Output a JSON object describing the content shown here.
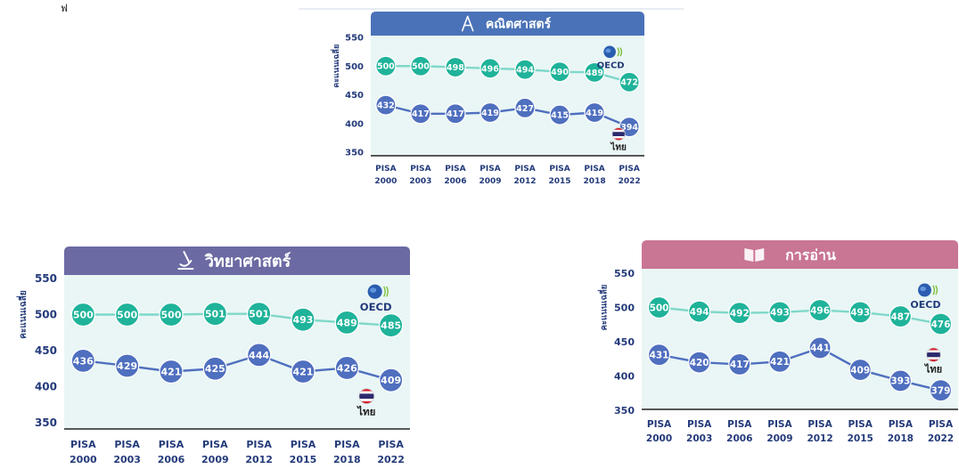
{
  "corner_mark": "ฟ",
  "colors": {
    "oecd": "#1fb39a",
    "oecd_line": "#7fd8c9",
    "thai": "#4f6fbf",
    "thai_line": "#4f6fbf",
    "plot_bg": "#e9f6f5",
    "axis_text": "#233a7a"
  },
  "labels": {
    "ylabel": "คะแนนเฉลี่ย",
    "oecd": "OECD",
    "thai": "ไทย"
  },
  "chart_data": [
    {
      "type": "line",
      "title": "คณิตศาสตร์",
      "header_color": "#4a72b8",
      "header_icon": "compass-icon",
      "categories": [
        "PISA 2000",
        "PISA 2003",
        "PISA 2006",
        "PISA 2009",
        "PISA 2012",
        "PISA 2015",
        "PISA 2018",
        "PISA 2022"
      ],
      "ylim": [
        350,
        550
      ],
      "yticks": [
        350,
        400,
        450,
        500,
        550
      ],
      "ylabel": "คะแนนเฉลี่ย",
      "legend": "right",
      "series": [
        {
          "name": "OECD",
          "values": [
            500,
            500,
            498,
            496,
            494,
            490,
            489,
            472
          ]
        },
        {
          "name": "ไทย",
          "values": [
            432,
            417,
            417,
            419,
            427,
            415,
            419,
            394
          ]
        }
      ]
    },
    {
      "type": "line",
      "title": "วิทยาศาสตร์",
      "header_color": "#6b6aa3",
      "header_icon": "microscope-icon",
      "categories": [
        "PISA 2000",
        "PISA 2003",
        "PISA 2006",
        "PISA 2009",
        "PISA 2012",
        "PISA 2015",
        "PISA 2018",
        "PISA 2022"
      ],
      "ylim": [
        350,
        550
      ],
      "yticks": [
        350,
        400,
        450,
        500,
        550
      ],
      "ylabel": "คะแนนเฉลี่ย",
      "legend": "right",
      "series": [
        {
          "name": "OECD",
          "values": [
            500,
            500,
            500,
            501,
            501,
            493,
            489,
            485
          ]
        },
        {
          "name": "ไทย",
          "values": [
            436,
            429,
            421,
            425,
            444,
            421,
            426,
            409
          ]
        }
      ]
    },
    {
      "type": "line",
      "title": "การอ่าน",
      "header_color": "#c97594",
      "header_icon": "book-icon",
      "categories": [
        "PISA 2000",
        "PISA 2003",
        "PISA 2006",
        "PISA 2009",
        "PISA 2012",
        "PISA 2015",
        "PISA 2018",
        "PISA 2022"
      ],
      "ylim": [
        350,
        550
      ],
      "yticks": [
        350,
        400,
        450,
        500,
        550
      ],
      "ylabel": "คะแนนเฉลี่ย",
      "legend": "right",
      "series": [
        {
          "name": "OECD",
          "values": [
            500,
            494,
            492,
            493,
            496,
            493,
            487,
            476
          ]
        },
        {
          "name": "ไทย",
          "values": [
            431,
            420,
            417,
            421,
            441,
            409,
            393,
            379
          ]
        }
      ]
    }
  ]
}
